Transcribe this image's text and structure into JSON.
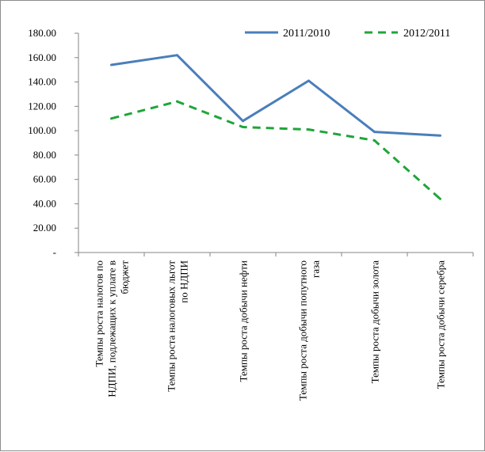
{
  "chart_data": {
    "type": "line",
    "categories": [
      [
        "Темпы роста налогов по",
        "НДПИ, подлежащих к уплате в",
        "бюджет"
      ],
      [
        "Темпы роста налоговых льгот",
        "по НДПИ"
      ],
      [
        "Темпы роста добычи нефти"
      ],
      [
        "Темпы роста добычи попутного",
        "газа"
      ],
      [
        "Темпы роста добычи золота"
      ],
      [
        "Темпы роста добычи серебра"
      ]
    ],
    "series": [
      {
        "name": "2011/2010",
        "values": [
          154,
          162,
          108,
          141,
          99,
          96
        ],
        "color": "#4a7ebb",
        "style": "solid"
      },
      {
        "name": "2012/2011",
        "values": [
          110,
          124,
          103,
          101,
          92,
          44
        ],
        "color": "#1fa53a",
        "style": "dashed"
      }
    ],
    "yticks": [
      "180.00",
      "160.00",
      "140.00",
      "120.00",
      "100.00",
      "80.00",
      "60.00",
      "40.00",
      "20.00",
      "-"
    ],
    "ylim": [
      0,
      180
    ],
    "legend_position": "top-right",
    "grid": false
  }
}
